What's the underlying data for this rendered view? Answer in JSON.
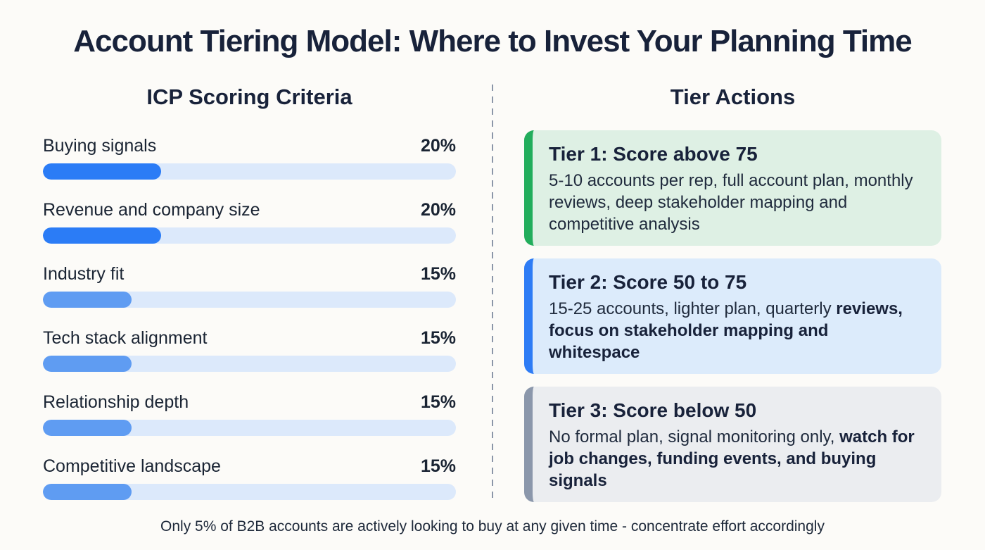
{
  "title": "Account Tiering Model: Where to Invest Your Planning Time",
  "left_section": {
    "heading": "ICP Scoring Criteria"
  },
  "right_section": {
    "heading": "Tier Actions"
  },
  "chart_data": {
    "type": "bar",
    "title": "ICP Scoring Criteria",
    "orientation": "horizontal",
    "categories": [
      "Buying signals",
      "Revenue and company size",
      "Industry fit",
      "Tech stack alignment",
      "Relationship depth",
      "Competitive landscape"
    ],
    "values": [
      20,
      20,
      15,
      15,
      15,
      15
    ],
    "value_labels": [
      "20%",
      "20%",
      "15%",
      "15%",
      "15%",
      "15%"
    ],
    "unit": "%",
    "bar_scale_max": 70,
    "bar_colors": [
      "#2b7cf6",
      "#2b7cf6",
      "#5f9cf2",
      "#5f9cf2",
      "#5f9cf2",
      "#5f9cf2"
    ],
    "track_color": "#dce9fb",
    "grid": false,
    "legend": false
  },
  "tiers": [
    {
      "heading": "Tier 1: Score above 75",
      "body_regular": "5-10 accounts per rep, full account plan, monthly reviews, deep stakeholder mapping and competitive analysis",
      "body_bold": "",
      "accent_color": "#22ad5c",
      "bg_color": "#def0e4"
    },
    {
      "heading": "Tier 2: Score 50 to 75",
      "body_regular": "15-25 accounts, lighter plan, quarterly ",
      "body_bold": "reviews, focus on stakeholder mapping and whitespace",
      "accent_color": "#2e7cf5",
      "bg_color": "#dcebfb"
    },
    {
      "heading": "Tier 3: Score below 50",
      "body_regular": "No formal plan, signal monitoring only, ",
      "body_bold": "watch for job changes, funding events, and buying signals",
      "accent_color": "#8b97ab",
      "bg_color": "#ebedf0"
    }
  ],
  "footer": {
    "note": "Only 5% of B2B accounts are actively looking to buy at any given time - concentrate effort accordingly"
  },
  "colors": {
    "background": "#fcfbf8",
    "heading_text": "#18223a",
    "bar_blue_strong": "#2b7cf6",
    "bar_blue_light": "#5f9cf2",
    "bar_track": "#dce9fb",
    "tier1_green": "#22ad5c",
    "tier2_blue": "#2e7cf5",
    "tier3_gray": "#8b97ab",
    "divider_gray": "#8b96a8"
  }
}
